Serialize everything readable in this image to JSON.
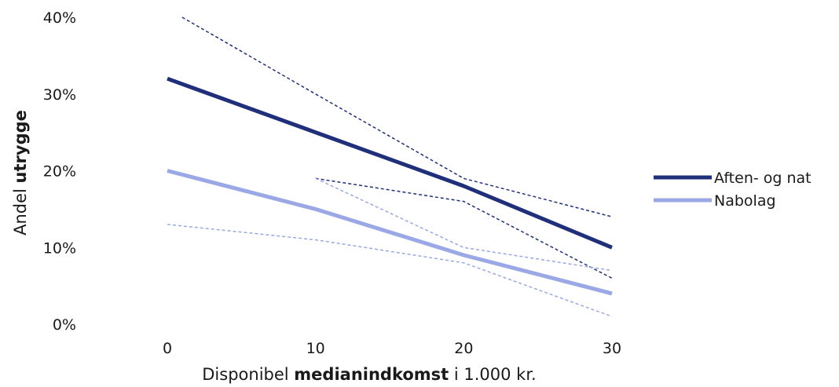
{
  "chart_data": {
    "type": "line",
    "xlabel_parts": [
      "Disponibel ",
      "medianindkomst",
      " i 1.000 kr."
    ],
    "ylabel_parts": [
      "Andel ",
      "utrygge"
    ],
    "x_ticks": [
      "0",
      "10",
      "20",
      "30"
    ],
    "y_ticks": [
      "0%",
      "10%",
      "20%",
      "30%",
      "40%"
    ],
    "xlim": [
      0,
      30
    ],
    "ylim": [
      0,
      40
    ],
    "grid": false,
    "legend_position": "right",
    "series": [
      {
        "name": "Aften- og nat",
        "color": "#1f2f7a",
        "x": [
          0,
          10,
          20,
          30
        ],
        "y": [
          32,
          25,
          18,
          10
        ],
        "upper_x": [
          1,
          10,
          20,
          30
        ],
        "upper_y": [
          40,
          30,
          19,
          14
        ],
        "lower_x": [
          10,
          20,
          30
        ],
        "lower_y": [
          19,
          16,
          6
        ]
      },
      {
        "name": "Nabolag",
        "color": "#9aa8e6",
        "x": [
          0,
          10,
          20,
          30
        ],
        "y": [
          20,
          15,
          9,
          4
        ],
        "upper_x": [
          10,
          20,
          30
        ],
        "upper_y": [
          19,
          10,
          7
        ],
        "lower_x": [
          0,
          10,
          20,
          30
        ],
        "lower_y": [
          13,
          11,
          8,
          1
        ]
      }
    ]
  }
}
